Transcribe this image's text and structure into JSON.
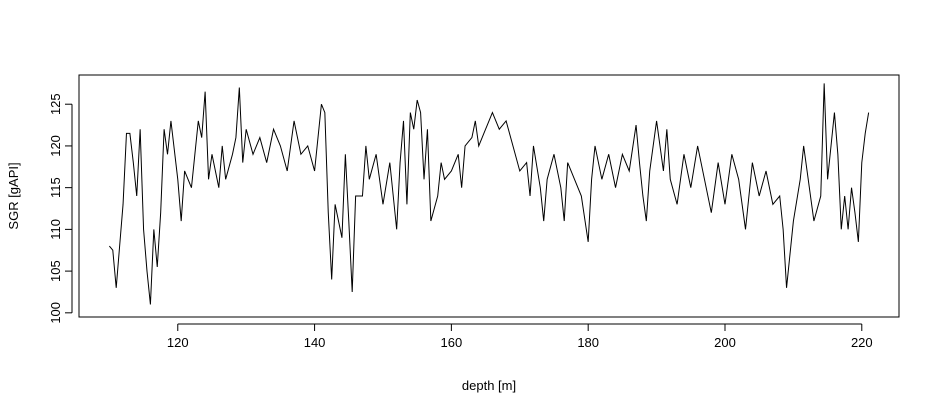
{
  "chart_data": {
    "type": "line",
    "x_label": "depth [m]",
    "y_label": "SGR [gAPI]",
    "x": [
      110,
      110.5,
      111,
      112,
      112.5,
      113,
      113.5,
      114,
      114.5,
      115,
      115.5,
      116,
      116.5,
      117,
      117.5,
      118,
      118.5,
      119,
      120,
      120.5,
      121,
      122,
      122.5,
      123,
      123.5,
      124,
      124.5,
      125,
      126,
      126.5,
      127,
      128,
      128.5,
      129,
      129.5,
      130,
      131,
      132,
      133,
      134,
      135,
      136,
      137,
      138,
      139,
      140,
      140.5,
      141,
      141.5,
      142,
      142.5,
      143,
      144,
      144.5,
      145,
      145.5,
      146,
      147,
      147.5,
      148,
      149,
      150,
      151,
      152,
      152.5,
      153,
      153.5,
      154,
      154.5,
      155,
      155.5,
      156,
      156.5,
      157,
      158,
      158.5,
      159,
      160,
      161,
      161.5,
      162,
      163,
      163.5,
      164,
      165,
      166,
      167,
      168,
      169,
      170,
      171,
      171.5,
      172,
      173,
      173.5,
      174,
      175,
      176,
      176.5,
      177,
      178,
      179,
      180,
      180.5,
      181,
      182,
      183,
      184,
      185,
      186,
      187,
      187.5,
      188,
      188.5,
      189,
      190,
      191,
      191.5,
      192,
      193,
      194,
      195,
      196,
      197,
      198,
      199,
      200,
      201,
      202,
      203,
      204,
      205,
      206,
      207,
      208,
      208.5,
      209,
      210,
      211,
      211.5,
      212,
      213,
      214,
      214.5,
      215,
      216,
      216.5,
      217,
      217.5,
      218,
      218.5,
      219,
      219.5,
      220,
      220.5,
      221
    ],
    "values": [
      108,
      107.5,
      103,
      113,
      121.5,
      121.5,
      118,
      114,
      122,
      110,
      105,
      101,
      110,
      105.5,
      112,
      122,
      119,
      123,
      116,
      111,
      117,
      115,
      119,
      123,
      121,
      126.5,
      116,
      119,
      115,
      120,
      116,
      119,
      121,
      127,
      118,
      122,
      119,
      121,
      118,
      122,
      120,
      117,
      123,
      119,
      120,
      117,
      121,
      125,
      124,
      112,
      104,
      113,
      109,
      119,
      111,
      102.5,
      114,
      114,
      120,
      116,
      119,
      113,
      118,
      110,
      118,
      123,
      113,
      124,
      122,
      125.5,
      124,
      116,
      122,
      111,
      114,
      118,
      116,
      117,
      119,
      115,
      120,
      121,
      123,
      120,
      122,
      124,
      122,
      123,
      120,
      117,
      118,
      114,
      120,
      115,
      111,
      116,
      119,
      115,
      111,
      118,
      116,
      114,
      108.5,
      116,
      120,
      116,
      119,
      115,
      119,
      117,
      122.5,
      118,
      114,
      111,
      117,
      123,
      117,
      122,
      116,
      113,
      119,
      115,
      120,
      116,
      112,
      118,
      113,
      119,
      116,
      110,
      118,
      114,
      117,
      113,
      114,
      110,
      103,
      111,
      116,
      120,
      117,
      111,
      114,
      127.5,
      116,
      124,
      119,
      110,
      114,
      110,
      115,
      112,
      108.5,
      118,
      121.5,
      124
    ],
    "color": "#000000",
    "xlim": [
      105.56,
      225.44
    ],
    "ylim": [
      99.5,
      128.5
    ],
    "xticks": [
      120,
      140,
      160,
      180,
      200,
      220
    ],
    "yticks": [
      100,
      105,
      110,
      115,
      120,
      125
    ]
  }
}
